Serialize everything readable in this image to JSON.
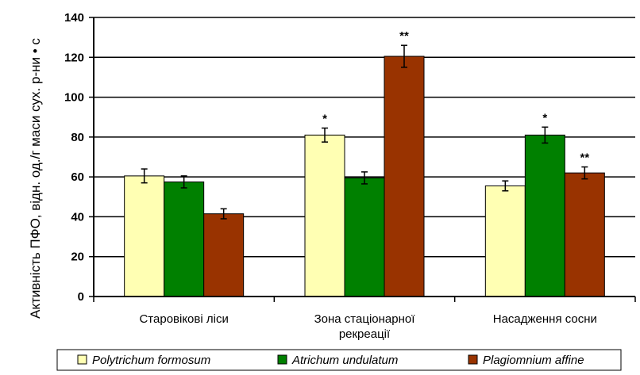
{
  "chart_data": {
    "type": "bar",
    "ylabel": "Активність ПФО, відн. од./г маси сух. р-ни • с",
    "xlabel": "",
    "ylim": [
      0,
      140
    ],
    "yticks": [
      0,
      20,
      40,
      60,
      80,
      100,
      120,
      140
    ],
    "grid": "horizontal",
    "legend_position": "bottom",
    "categories": [
      [
        "Старовікові ліси"
      ],
      [
        "Зона стаціонарної",
        "рекреації"
      ],
      [
        "Насадження сосни"
      ]
    ],
    "series": [
      {
        "name": "Polytrichum formosum",
        "color": "#ffffb3",
        "values": [
          60.5,
          81,
          55.5
        ],
        "errors": [
          3.5,
          3.5,
          2.5
        ],
        "annotations": [
          "",
          "*",
          ""
        ]
      },
      {
        "name": "Atrichum undulatum",
        "color": "#008000",
        "values": [
          57.5,
          59.5,
          81
        ],
        "errors": [
          3,
          3,
          4
        ],
        "annotations": [
          "",
          "",
          "*"
        ]
      },
      {
        "name": "Plagiomnium affine",
        "color": "#993300",
        "values": [
          41.5,
          120.5,
          62
        ],
        "errors": [
          2.5,
          5.5,
          3
        ],
        "annotations": [
          "",
          "**",
          "**"
        ]
      }
    ]
  }
}
